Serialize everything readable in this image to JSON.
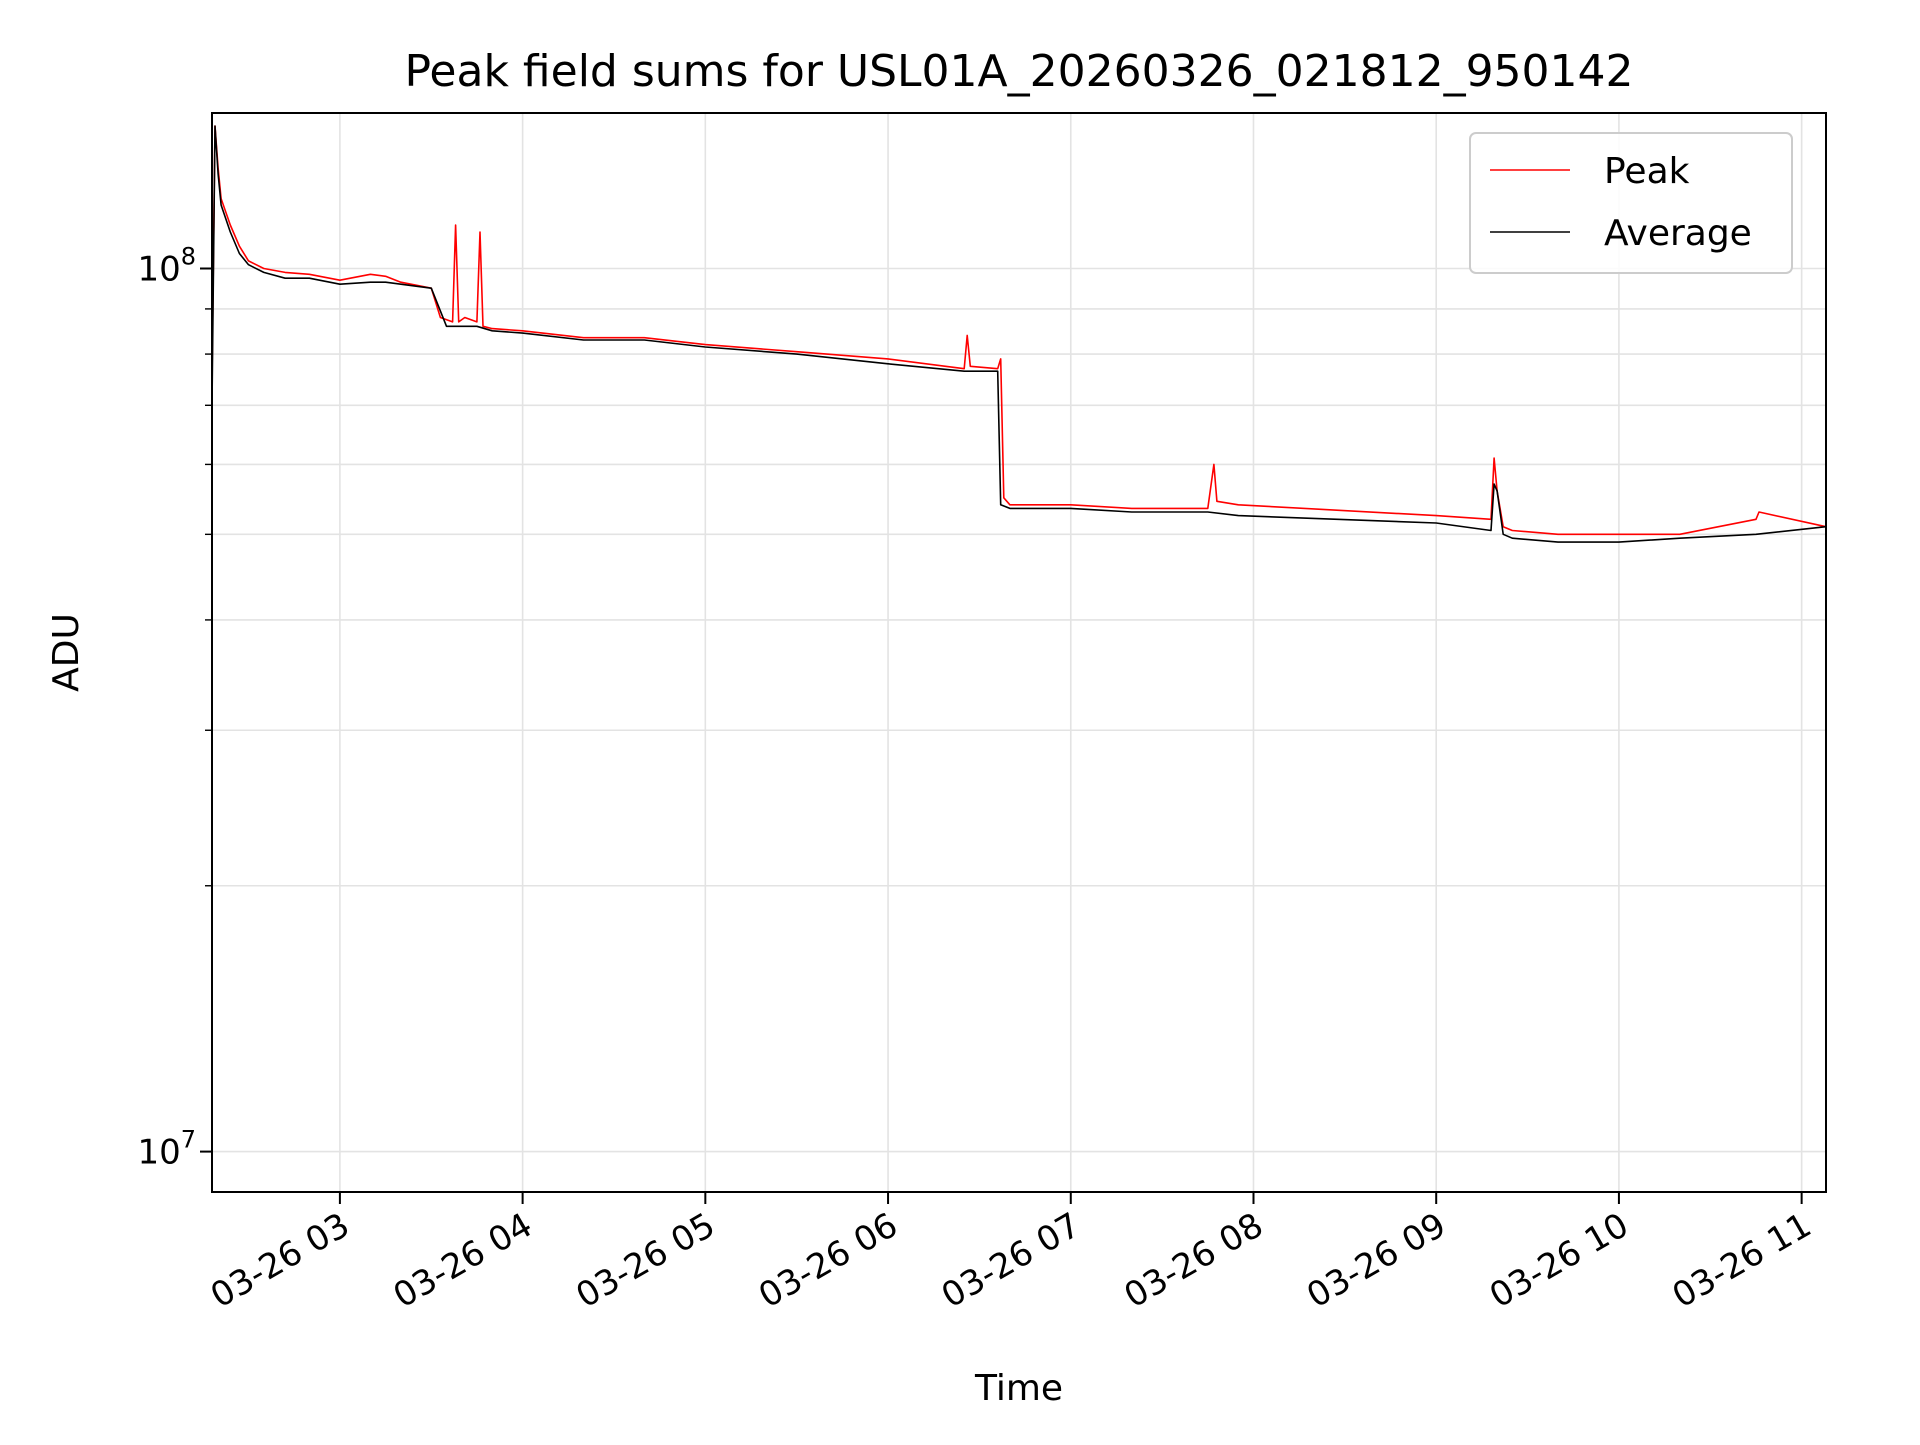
{
  "chart_data": {
    "type": "line",
    "title": "Peak field sums for USL01A_20260326_021812_950142",
    "xlabel": "Time",
    "ylabel": "ADU",
    "yscale": "log",
    "xlim": [
      "2026-03-26 02:18",
      "2026-03-26 11:08"
    ],
    "ylim": [
      9000000,
      150000000
    ],
    "grid": true,
    "legend_position": "top-right",
    "x_ticks": [
      "03-26 03",
      "03-26 04",
      "03-26 05",
      "03-26 06",
      "03-26 07",
      "03-26 08",
      "03-26 09",
      "03-26 10",
      "03-26 11"
    ],
    "x_tick_values": [
      "2026-03-26 03:00",
      "2026-03-26 04:00",
      "2026-03-26 05:00",
      "2026-03-26 06:00",
      "2026-03-26 07:00",
      "2026-03-26 08:00",
      "2026-03-26 09:00",
      "2026-03-26 10:00",
      "2026-03-26 11:00"
    ],
    "y_ticks": [
      {
        "value": 10000000,
        "base": "10",
        "exp": "7"
      },
      {
        "value": 100000000,
        "base": "10",
        "exp": "8"
      }
    ],
    "series": [
      {
        "name": "Peak",
        "color": "#ff0000",
        "x": [
          "2026-03-26 02:18",
          "2026-03-26 02:19",
          "2026-03-26 02:20",
          "2026-03-26 02:21",
          "2026-03-26 02:24",
          "2026-03-26 02:27",
          "2026-03-26 02:30",
          "2026-03-26 02:35",
          "2026-03-26 02:42",
          "2026-03-26 02:50",
          "2026-03-26 03:00",
          "2026-03-26 03:10",
          "2026-03-26 03:15",
          "2026-03-26 03:20",
          "2026-03-26 03:30",
          "2026-03-26 03:33",
          "2026-03-26 03:37",
          "2026-03-26 03:38",
          "2026-03-26 03:39",
          "2026-03-26 03:41",
          "2026-03-26 03:45",
          "2026-03-26 03:46",
          "2026-03-26 03:47",
          "2026-03-26 03:50",
          "2026-03-26 04:00",
          "2026-03-26 04:20",
          "2026-03-26 04:40",
          "2026-03-26 05:00",
          "2026-03-26 05:30",
          "2026-03-26 06:00",
          "2026-03-26 06:25",
          "2026-03-26 06:26",
          "2026-03-26 06:27",
          "2026-03-26 06:36",
          "2026-03-26 06:37",
          "2026-03-26 06:38",
          "2026-03-26 06:40",
          "2026-03-26 07:00",
          "2026-03-26 07:20",
          "2026-03-26 07:45",
          "2026-03-26 07:47",
          "2026-03-26 07:48",
          "2026-03-26 07:55",
          "2026-03-26 09:00",
          "2026-03-26 09:18",
          "2026-03-26 09:19",
          "2026-03-26 09:20",
          "2026-03-26 09:22",
          "2026-03-26 09:25",
          "2026-03-26 09:40",
          "2026-03-26 10:00",
          "2026-03-26 10:20",
          "2026-03-26 10:45",
          "2026-03-26 10:46",
          "2026-03-26 11:08"
        ],
        "values": [
          75000000,
          145000000,
          130000000,
          120000000,
          112000000,
          106000000,
          102000000,
          100000000,
          99000000,
          98500000,
          97000000,
          98500000,
          98000000,
          96500000,
          95000000,
          88000000,
          87000000,
          112000000,
          87000000,
          88000000,
          87000000,
          110000000,
          86000000,
          85500000,
          85000000,
          83500000,
          83500000,
          82000000,
          80500000,
          79000000,
          77000000,
          84000000,
          77500000,
          77000000,
          79000000,
          55000000,
          54000000,
          54000000,
          53500000,
          53500000,
          60000000,
          54500000,
          54000000,
          52500000,
          52000000,
          61000000,
          56000000,
          51000000,
          50500000,
          50000000,
          50000000,
          50000000,
          52000000,
          53000000,
          51000000
        ]
      },
      {
        "name": "Average",
        "color": "#000000",
        "x": [
          "2026-03-26 02:18",
          "2026-03-26 02:19",
          "2026-03-26 02:20",
          "2026-03-26 02:21",
          "2026-03-26 02:24",
          "2026-03-26 02:27",
          "2026-03-26 02:30",
          "2026-03-26 02:35",
          "2026-03-26 02:42",
          "2026-03-26 02:50",
          "2026-03-26 03:00",
          "2026-03-26 03:10",
          "2026-03-26 03:15",
          "2026-03-26 03:20",
          "2026-03-26 03:30",
          "2026-03-26 03:35",
          "2026-03-26 03:37",
          "2026-03-26 03:40",
          "2026-03-26 03:45",
          "2026-03-26 03:50",
          "2026-03-26 04:00",
          "2026-03-26 04:20",
          "2026-03-26 04:40",
          "2026-03-26 05:00",
          "2026-03-26 05:30",
          "2026-03-26 06:00",
          "2026-03-26 06:25",
          "2026-03-26 06:36",
          "2026-03-26 06:37",
          "2026-03-26 06:40",
          "2026-03-26 07:00",
          "2026-03-26 07:20",
          "2026-03-26 07:45",
          "2026-03-26 07:55",
          "2026-03-26 09:00",
          "2026-03-26 09:18",
          "2026-03-26 09:19",
          "2026-03-26 09:20",
          "2026-03-26 09:22",
          "2026-03-26 09:25",
          "2026-03-26 09:40",
          "2026-03-26 10:00",
          "2026-03-26 10:20",
          "2026-03-26 10:45",
          "2026-03-26 11:08"
        ],
        "values": [
          70000000,
          145000000,
          128000000,
          118000000,
          110000000,
          104000000,
          101000000,
          99000000,
          97500000,
          97500000,
          96000000,
          96500000,
          96500000,
          96000000,
          95000000,
          86000000,
          86000000,
          86000000,
          86000000,
          85000000,
          84500000,
          83000000,
          83000000,
          81500000,
          80000000,
          78000000,
          76500000,
          76500000,
          54000000,
          53500000,
          53500000,
          53000000,
          53000000,
          52500000,
          51500000,
          50500000,
          57000000,
          56000000,
          50000000,
          49500000,
          49000000,
          49000000,
          49500000,
          50000000,
          51000000
        ]
      }
    ]
  }
}
